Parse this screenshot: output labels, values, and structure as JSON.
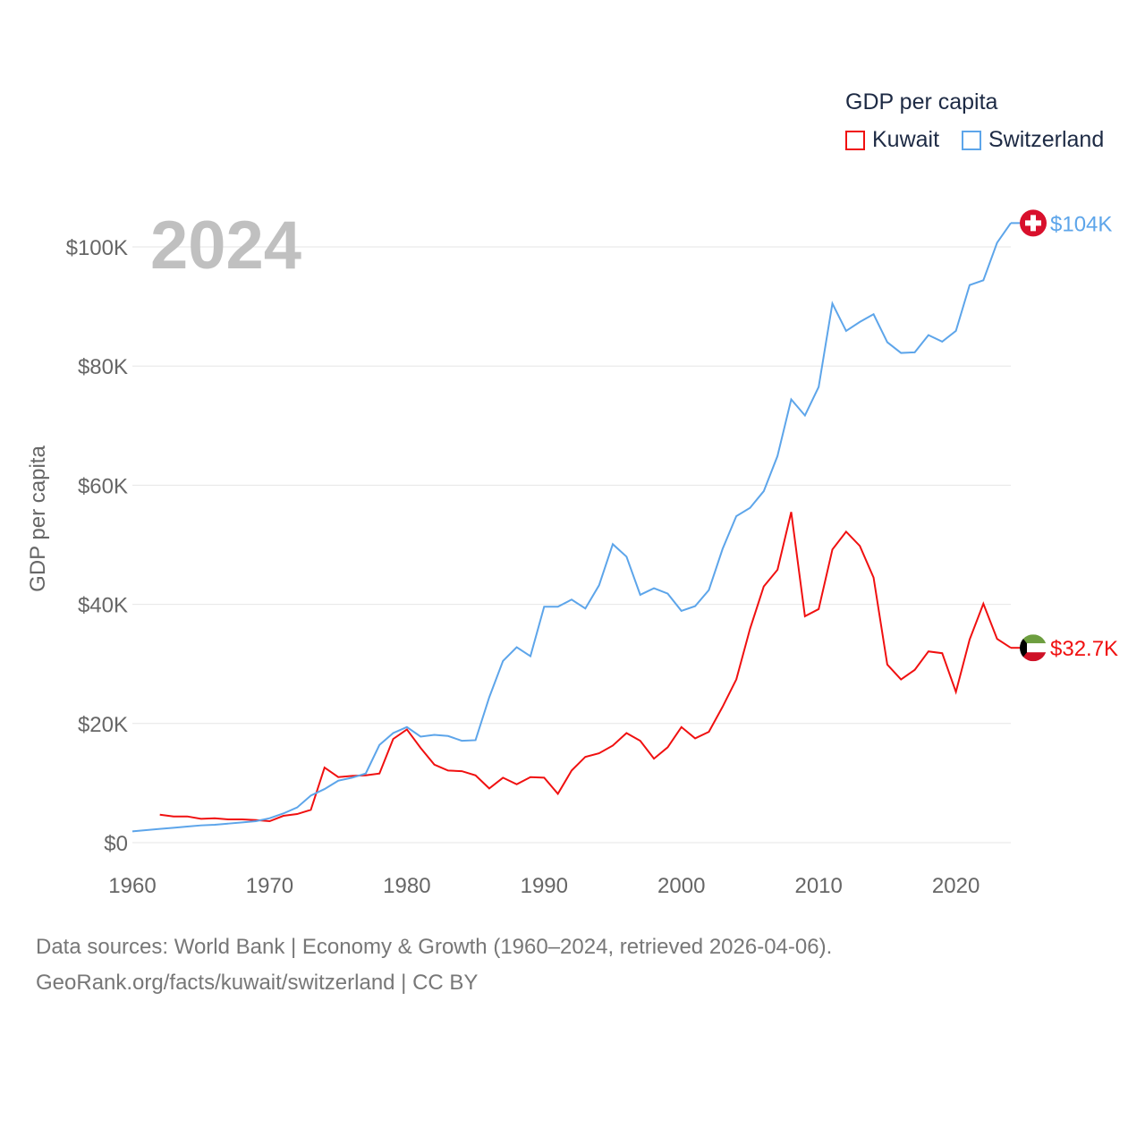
{
  "chart_data": {
    "type": "line",
    "title": "GDP per capita",
    "year_label": "2024",
    "xlabel": "",
    "ylabel": "GDP per capita",
    "xlim": [
      1960,
      2024
    ],
    "ylim": [
      0,
      104000
    ],
    "x_ticks": [
      "1960",
      "1970",
      "1980",
      "1990",
      "2000",
      "2010",
      "2020"
    ],
    "y_ticks": [
      {
        "v": 0,
        "label": "$0"
      },
      {
        "v": 20000,
        "label": "$20K"
      },
      {
        "v": 40000,
        "label": "$40K"
      },
      {
        "v": 60000,
        "label": "$60K"
      },
      {
        "v": 80000,
        "label": "$80K"
      },
      {
        "v": 100000,
        "label": "$100K"
      }
    ],
    "grid": true,
    "legend_placement": "top-right",
    "series": [
      {
        "name": "Kuwait",
        "color": "#f01010",
        "start_year": 1962,
        "end_label": "$32.7K",
        "flag": "kuwait-flag",
        "values": [
          4.7,
          4.4,
          4.4,
          4.0,
          4.1,
          3.9,
          3.9,
          3.8,
          3.6,
          4.5,
          4.8,
          5.5,
          12.6,
          11.0,
          11.2,
          11.3,
          11.6,
          17.4,
          19.0,
          15.9,
          13.1,
          12.1,
          12.0,
          11.3,
          9.1,
          10.9,
          9.8,
          11.0,
          10.9,
          8.2,
          12.1,
          14.4,
          15.0,
          16.3,
          18.4,
          17.1,
          14.1,
          16.0,
          19.4,
          17.5,
          18.6,
          22.8,
          27.4,
          35.9,
          43.0,
          45.8,
          55.5,
          38.0,
          39.2,
          49.2,
          52.2,
          49.8,
          44.5,
          29.9,
          27.4,
          29.0,
          32.1,
          31.8,
          25.3,
          34.1,
          40.1,
          34.2,
          32.7
        ]
      },
      {
        "name": "Switzerland",
        "color": "#5da5ea",
        "start_year": 1960,
        "end_label": "$104K",
        "flag": "switzerland-flag",
        "values": [
          1.9,
          2.1,
          2.3,
          2.5,
          2.7,
          2.9,
          3.0,
          3.2,
          3.4,
          3.6,
          4.1,
          4.9,
          5.9,
          7.9,
          9.0,
          10.4,
          10.9,
          11.6,
          16.4,
          18.4,
          19.4,
          17.8,
          18.1,
          17.9,
          17.1,
          17.2,
          24.4,
          30.5,
          32.8,
          31.3,
          39.6,
          39.6,
          40.8,
          39.3,
          43.2,
          50.1,
          48.0,
          41.6,
          42.7,
          41.8,
          38.9,
          39.7,
          42.4,
          49.3,
          54.8,
          56.2,
          59.0,
          64.9,
          74.4,
          71.7,
          76.5,
          90.5,
          85.9,
          87.4,
          88.7,
          84.0,
          82.2,
          82.3,
          85.2,
          84.1,
          85.9,
          93.6,
          94.4,
          100.7,
          104.0
        ]
      }
    ],
    "value_unit": "thousand USD"
  },
  "footer": {
    "line1": "Data sources: World Bank | Economy & Growth (1960–2024, retrieved 2026-04-06).",
    "line2": "GeoRank.org/facts/kuwait/switzerland | CC BY"
  }
}
